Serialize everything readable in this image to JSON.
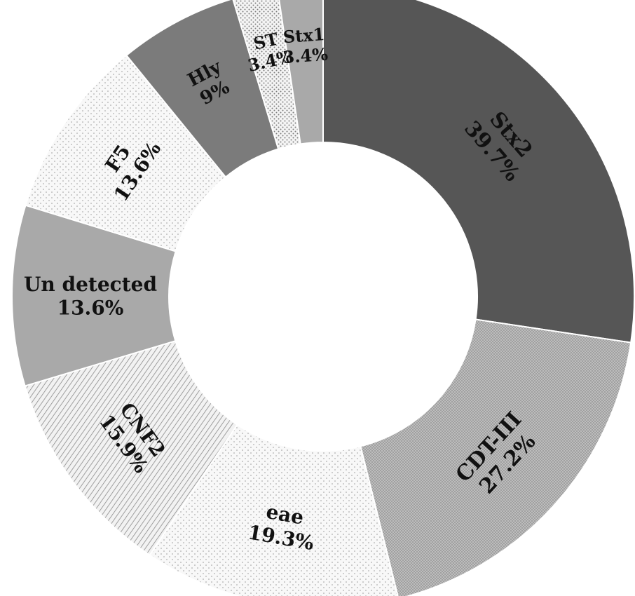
{
  "chart_data": {
    "type": "pie",
    "variant": "donut",
    "title": "",
    "legend": "none",
    "categories": [
      "Stx2",
      "CDT-III",
      "eae",
      "CNF2",
      "Un detected",
      "F5",
      "Hly",
      "ST",
      "Stx1"
    ],
    "values": [
      39.7,
      27.2,
      19.3,
      15.9,
      13.6,
      13.6,
      9,
      3.4,
      3.4
    ],
    "value_labels": [
      "39.7%",
      "27.2%",
      "19.3%",
      "15.9%",
      "13.6%",
      "13.6%",
      "9%",
      "3.4%",
      "3.4%"
    ],
    "colors": [
      "#565656",
      "#b4b4b4",
      "#f3f3f3",
      "#ededed",
      "#a9a9a9",
      "#efefef",
      "#7b7b7b",
      "#f0f0f0",
      "#a9a9a9"
    ],
    "patterns": [
      "solid",
      "fine-dots",
      "sparse-dots",
      "diagonal-lines",
      "solid",
      "sparse-dots",
      "solid",
      "dots",
      "solid"
    ]
  }
}
